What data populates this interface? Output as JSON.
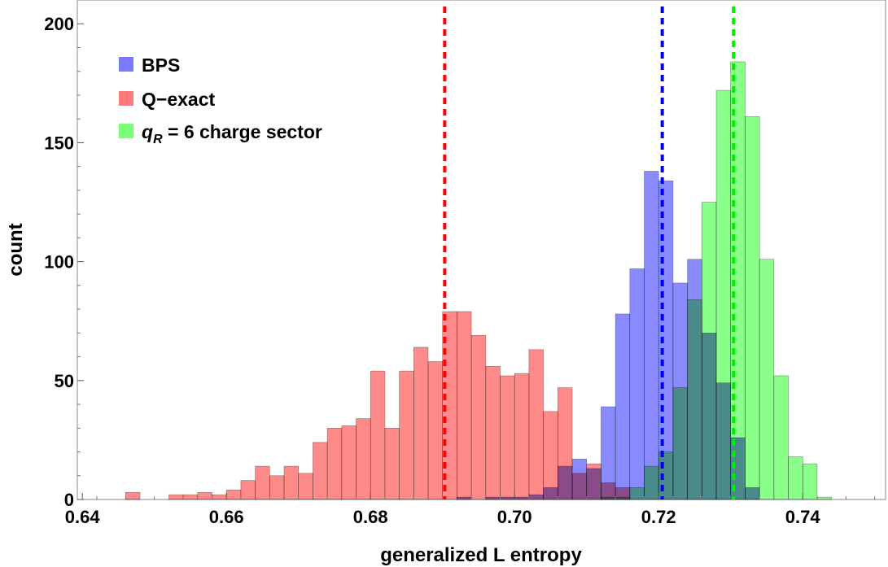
{
  "chart_data": {
    "type": "histogram",
    "title": "",
    "xlabel": "generalized L entropy",
    "ylabel": "count",
    "xlim": [
      0.6393,
      0.7515
    ],
    "ylim": [
      0,
      210
    ],
    "x_ticks": [
      0.64,
      0.66,
      0.68,
      0.7,
      0.72,
      0.74
    ],
    "x_tick_labels": [
      "0.64",
      "0.66",
      "0.68",
      "0.70",
      "0.72",
      "0.74"
    ],
    "y_ticks": [
      0,
      50,
      100,
      150,
      200
    ],
    "y_tick_labels": [
      "0",
      "50",
      "100",
      "150",
      "200"
    ],
    "bin_width": 0.002,
    "legend": {
      "position": "top-left"
    },
    "series": [
      {
        "name": "BPS",
        "color": "#7a7aff",
        "bin_starts": [
          0.69,
          0.692,
          0.694,
          0.696,
          0.698,
          0.7,
          0.702,
          0.704,
          0.706,
          0.708,
          0.71,
          0.712,
          0.714,
          0.716,
          0.718,
          0.72,
          0.722,
          0.724,
          0.726,
          0.728,
          0.73,
          0.732,
          0.734
        ],
        "counts": [
          0,
          1,
          0,
          1,
          1,
          1,
          2,
          5,
          14,
          17,
          13,
          39,
          78,
          97,
          138,
          134,
          91,
          101,
          70,
          49,
          26,
          5,
          0
        ]
      },
      {
        "name": "Q-exact",
        "color": "#ff7a7a",
        "bin_starts": [
          0.644,
          0.646,
          0.648,
          0.65,
          0.652,
          0.654,
          0.656,
          0.658,
          0.66,
          0.662,
          0.664,
          0.666,
          0.668,
          0.67,
          0.672,
          0.674,
          0.676,
          0.678,
          0.68,
          0.682,
          0.684,
          0.686,
          0.688,
          0.69,
          0.692,
          0.694,
          0.696,
          0.698,
          0.7,
          0.702,
          0.704,
          0.706,
          0.708,
          0.71,
          0.712,
          0.714,
          0.716
        ],
        "counts": [
          0,
          3,
          0,
          0,
          2,
          2,
          3,
          2,
          4,
          8,
          14,
          10,
          14,
          11,
          24,
          30,
          31,
          34,
          54,
          30,
          54,
          64,
          58,
          79,
          79,
          69,
          56,
          52,
          53,
          63,
          37,
          47,
          11,
          15,
          7,
          5,
          0
        ]
      },
      {
        "name": "q_R = 6 charge sector",
        "color": "#7aff7a",
        "bin_starts": [
          0.71,
          0.712,
          0.714,
          0.716,
          0.718,
          0.72,
          0.722,
          0.724,
          0.726,
          0.728,
          0.73,
          0.732,
          0.734,
          0.736,
          0.738,
          0.74,
          0.742
        ],
        "counts": [
          0,
          1,
          1,
          5,
          14,
          20,
          47,
          84,
          125,
          172,
          184,
          161,
          101,
          52,
          18,
          15,
          1
        ]
      }
    ],
    "vertical_lines": [
      {
        "x": 0.6903,
        "color": "#ff0000",
        "style": "dashed"
      },
      {
        "x": 0.7205,
        "color": "#0000ee",
        "style": "dashed"
      },
      {
        "x": 0.7304,
        "color": "#00ee00",
        "style": "dashed"
      }
    ]
  },
  "legend": {
    "items": [
      {
        "label": "BPS",
        "color": "#7a7aff"
      },
      {
        "label": "Q−exact",
        "color": "#ff7a7a"
      }
    ],
    "third": {
      "label_symbol": "q",
      "label_sub": "R",
      "label_rest": " = 6 charge sector",
      "color": "#7aff7a"
    }
  }
}
